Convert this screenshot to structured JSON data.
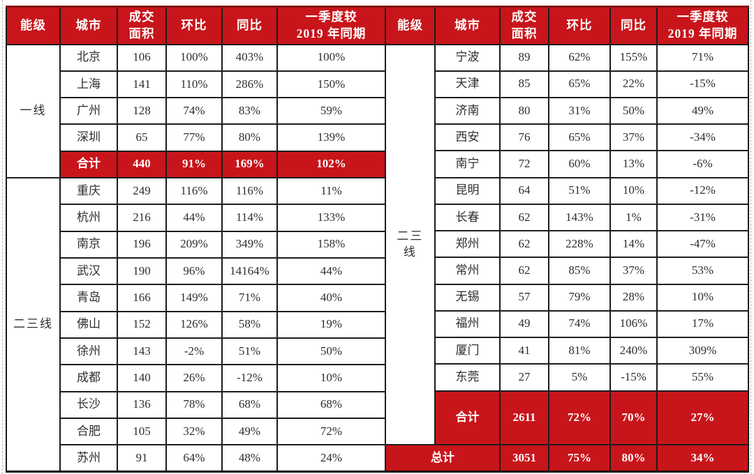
{
  "colors": {
    "accent_red": "#C8151B",
    "border_black": "#1C1C1C",
    "dark_red_edge": "#8B1411",
    "header_text": "#FFFFFF",
    "body_text": "#2E2E2E",
    "guide_gray": "#B3B3B3"
  },
  "chart_data": [
    {
      "type": "table",
      "name": "left",
      "headers": [
        "能级",
        "城市",
        "成交\n面积",
        "环比",
        "同比",
        "一季度较\n2019 年同期"
      ],
      "tier_groups": [
        {
          "label": "一线",
          "row_span": 5
        },
        {
          "label": "二三线",
          "row_span": 11
        }
      ],
      "rows": [
        {
          "kind": "data",
          "cells": [
            "北京",
            "106",
            "100%",
            "403%",
            "100%"
          ]
        },
        {
          "kind": "data",
          "cells": [
            "上海",
            "141",
            "110%",
            "286%",
            "150%"
          ]
        },
        {
          "kind": "data",
          "cells": [
            "广州",
            "128",
            "74%",
            "83%",
            "59%"
          ]
        },
        {
          "kind": "data",
          "cells": [
            "深圳",
            "65",
            "77%",
            "80%",
            "139%"
          ]
        },
        {
          "kind": "summary",
          "cells": [
            "合计",
            "440",
            "91%",
            "169%",
            "102%"
          ]
        },
        {
          "kind": "data",
          "cells": [
            "重庆",
            "249",
            "116%",
            "116%",
            "11%"
          ]
        },
        {
          "kind": "data",
          "cells": [
            "杭州",
            "216",
            "44%",
            "114%",
            "133%"
          ]
        },
        {
          "kind": "data",
          "cells": [
            "南京",
            "196",
            "209%",
            "349%",
            "158%"
          ]
        },
        {
          "kind": "data",
          "cells": [
            "武汉",
            "190",
            "96%",
            "14164%",
            "44%"
          ]
        },
        {
          "kind": "data",
          "cells": [
            "青岛",
            "166",
            "149%",
            "71%",
            "40%"
          ]
        },
        {
          "kind": "data",
          "cells": [
            "佛山",
            "152",
            "126%",
            "58%",
            "19%"
          ]
        },
        {
          "kind": "data",
          "cells": [
            "徐州",
            "143",
            "-2%",
            "51%",
            "50%"
          ]
        },
        {
          "kind": "data",
          "cells": [
            "成都",
            "140",
            "26%",
            "-12%",
            "10%"
          ]
        },
        {
          "kind": "data",
          "cells": [
            "长沙",
            "136",
            "78%",
            "68%",
            "68%"
          ]
        },
        {
          "kind": "data",
          "cells": [
            "合肥",
            "105",
            "32%",
            "49%",
            "72%"
          ]
        },
        {
          "kind": "data",
          "cells": [
            "苏州",
            "91",
            "64%",
            "48%",
            "24%"
          ]
        }
      ]
    },
    {
      "type": "table",
      "name": "right",
      "headers": [
        "能级",
        "城市",
        "成交\n面积",
        "环比",
        "同比",
        "一季度较\n2019 年同期"
      ],
      "tier_groups": [
        {
          "label": "二三\n线",
          "row_span": 14
        }
      ],
      "rows": [
        {
          "kind": "data",
          "cells": [
            "宁波",
            "89",
            "62%",
            "155%",
            "71%"
          ]
        },
        {
          "kind": "data",
          "cells": [
            "天津",
            "85",
            "65%",
            "22%",
            "-15%"
          ]
        },
        {
          "kind": "data",
          "cells": [
            "济南",
            "80",
            "31%",
            "50%",
            "49%"
          ]
        },
        {
          "kind": "data",
          "cells": [
            "西安",
            "76",
            "65%",
            "37%",
            "-34%"
          ]
        },
        {
          "kind": "data",
          "cells": [
            "南宁",
            "72",
            "60%",
            "13%",
            "-6%"
          ]
        },
        {
          "kind": "data",
          "cells": [
            "昆明",
            "64",
            "51%",
            "10%",
            "-12%"
          ]
        },
        {
          "kind": "data",
          "cells": [
            "长春",
            "62",
            "143%",
            "1%",
            "-31%"
          ]
        },
        {
          "kind": "data",
          "cells": [
            "郑州",
            "62",
            "228%",
            "14%",
            "-47%"
          ]
        },
        {
          "kind": "data",
          "cells": [
            "常州",
            "62",
            "85%",
            "37%",
            "53%"
          ]
        },
        {
          "kind": "data",
          "cells": [
            "无锡",
            "57",
            "79%",
            "28%",
            "10%"
          ]
        },
        {
          "kind": "data",
          "cells": [
            "福州",
            "49",
            "74%",
            "106%",
            "17%"
          ]
        },
        {
          "kind": "data",
          "cells": [
            "厦门",
            "41",
            "81%",
            "240%",
            "309%"
          ]
        },
        {
          "kind": "data",
          "cells": [
            "东莞",
            "27",
            "5%",
            "-15%",
            "55%"
          ]
        },
        {
          "kind": "summary",
          "tall": true,
          "cells": [
            "合计",
            "2611",
            "72%",
            "70%",
            "27%"
          ]
        },
        {
          "kind": "total",
          "cells": [
            "总计",
            "3051",
            "75%",
            "80%",
            "34%"
          ]
        }
      ]
    }
  ]
}
